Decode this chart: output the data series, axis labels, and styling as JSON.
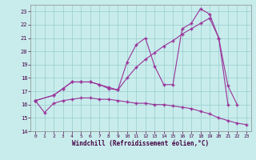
{
  "bg_color": "#c8ecec",
  "line_color": "#993399",
  "grid_color": "#99cccc",
  "xlabel": "Windchill (Refroidissement éolien,°C)",
  "xlim_min": -0.5,
  "xlim_max": 23.5,
  "ylim_min": 14,
  "ylim_max": 23.5,
  "yticks": [
    14,
    15,
    16,
    17,
    18,
    19,
    20,
    21,
    22,
    23
  ],
  "xticks": [
    0,
    1,
    2,
    3,
    4,
    5,
    6,
    7,
    8,
    9,
    10,
    11,
    12,
    13,
    14,
    15,
    16,
    17,
    18,
    19,
    20,
    21,
    22,
    23
  ],
  "line1_x": [
    0,
    1,
    2,
    3,
    4,
    5,
    6,
    7,
    8,
    9,
    10,
    11,
    12,
    13,
    14,
    15,
    16,
    17,
    18,
    19,
    20,
    21,
    22,
    23
  ],
  "line1_y": [
    16.3,
    15.4,
    16.1,
    16.3,
    16.4,
    16.5,
    16.5,
    16.4,
    16.4,
    16.3,
    16.2,
    16.1,
    16.1,
    16.0,
    16.0,
    15.9,
    15.8,
    15.7,
    15.5,
    15.3,
    15.0,
    14.8,
    14.6,
    14.5
  ],
  "line2_x": [
    0,
    2,
    3,
    4,
    5,
    6,
    7,
    8,
    9,
    10,
    11,
    12,
    13,
    14,
    15,
    16,
    17,
    18,
    19,
    20,
    21,
    22
  ],
  "line2_y": [
    16.3,
    16.7,
    17.2,
    17.7,
    17.7,
    17.7,
    17.5,
    17.2,
    17.1,
    19.2,
    20.5,
    21.0,
    18.9,
    17.5,
    17.5,
    21.7,
    22.1,
    23.2,
    22.8,
    21.0,
    17.4,
    16.0
  ],
  "line3_x": [
    0,
    2,
    3,
    4,
    5,
    6,
    7,
    8,
    9,
    10,
    11,
    12,
    13,
    14,
    15,
    16,
    17,
    18,
    19,
    20,
    21
  ],
  "line3_y": [
    16.3,
    16.7,
    17.2,
    17.7,
    17.7,
    17.7,
    17.5,
    17.3,
    17.1,
    18.0,
    18.8,
    19.4,
    19.9,
    20.4,
    20.8,
    21.3,
    21.7,
    22.1,
    22.5,
    21.0,
    16.0
  ]
}
